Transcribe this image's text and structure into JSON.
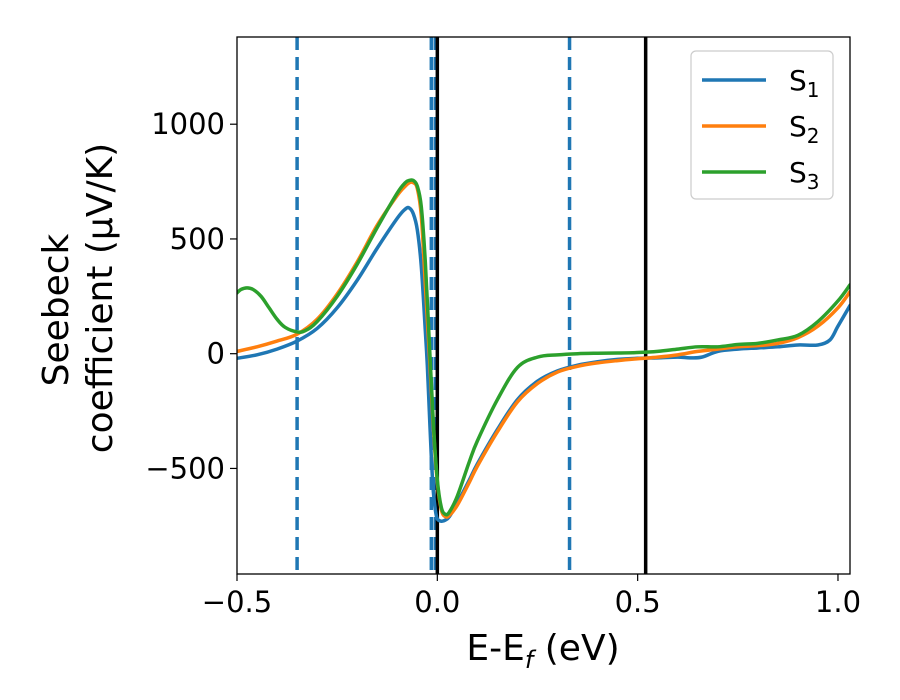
{
  "chart_data": {
    "type": "line",
    "xlabel": "E-E",
    "xlabel_sub": "f",
    "xlabel_unit": " (eV)",
    "ylabel_line1": "Seebeck",
    "ylabel_line2": "coefficient  (μV/K)",
    "xlim": [
      -0.5,
      1.03
    ],
    "ylim": [
      -960,
      1380
    ],
    "xticks": [
      -0.5,
      0.0,
      0.5,
      1.0
    ],
    "xtick_labels": [
      "−0.5",
      "0.0",
      "0.5",
      "1.0"
    ],
    "yticks": [
      -500,
      0,
      500,
      1000
    ],
    "ytick_labels": [
      "−500",
      "0",
      "500",
      "1000"
    ],
    "grid": false,
    "legend_position": "top-right",
    "vlines_dashed": {
      "color": "#1f77b4",
      "x": [
        -0.35,
        -0.015,
        -0.005,
        0.33
      ]
    },
    "vlines_solid": {
      "color": "#000000",
      "x": [
        0.0,
        0.52
      ]
    },
    "series": [
      {
        "name": "S",
        "subscript": "1",
        "color": "#1f77b4",
        "x": [
          -0.5,
          -0.45,
          -0.4,
          -0.35,
          -0.3,
          -0.25,
          -0.2,
          -0.15,
          -0.1,
          -0.08,
          -0.07,
          -0.06,
          -0.05,
          -0.04,
          -0.03,
          -0.025,
          -0.02,
          -0.015,
          -0.01,
          -0.005,
          0.0,
          0.01,
          0.02,
          0.03,
          0.05,
          0.08,
          0.1,
          0.15,
          0.2,
          0.25,
          0.3,
          0.35,
          0.4,
          0.45,
          0.5,
          0.55,
          0.6,
          0.63,
          0.66,
          0.7,
          0.75,
          0.8,
          0.85,
          0.9,
          0.95,
          0.98,
          1.0,
          1.03
        ],
        "y": [
          -20,
          -5,
          20,
          55,
          110,
          200,
          320,
          460,
          590,
          630,
          635,
          610,
          540,
          380,
          100,
          -50,
          -250,
          -450,
          -600,
          -680,
          -720,
          -730,
          -725,
          -710,
          -650,
          -550,
          -480,
          -330,
          -200,
          -120,
          -75,
          -50,
          -35,
          -25,
          -20,
          -18,
          -15,
          -18,
          -15,
          10,
          20,
          25,
          30,
          38,
          38,
          60,
          120,
          210
        ]
      },
      {
        "name": "S",
        "subscript": "2",
        "color": "#ff7f0e",
        "x": [
          -0.5,
          -0.45,
          -0.4,
          -0.35,
          -0.3,
          -0.25,
          -0.2,
          -0.15,
          -0.1,
          -0.08,
          -0.07,
          -0.06,
          -0.05,
          -0.04,
          -0.03,
          -0.02,
          -0.01,
          0.0,
          0.01,
          0.02,
          0.03,
          0.05,
          0.08,
          0.1,
          0.15,
          0.2,
          0.25,
          0.3,
          0.35,
          0.4,
          0.45,
          0.5,
          0.55,
          0.6,
          0.65,
          0.7,
          0.75,
          0.8,
          0.85,
          0.9,
          0.95,
          1.0,
          1.03
        ],
        "y": [
          10,
          30,
          55,
          85,
          150,
          260,
          400,
          560,
          690,
          730,
          745,
          745,
          720,
          600,
          300,
          0,
          -320,
          -560,
          -680,
          -710,
          -705,
          -660,
          -560,
          -490,
          -340,
          -210,
          -130,
          -80,
          -55,
          -40,
          -30,
          -22,
          -15,
          -5,
          10,
          20,
          30,
          35,
          45,
          70,
          120,
          200,
          270
        ]
      },
      {
        "name": "S",
        "subscript": "3",
        "color": "#2ca02c",
        "x": [
          -0.5,
          -0.49,
          -0.475,
          -0.46,
          -0.44,
          -0.42,
          -0.4,
          -0.38,
          -0.35,
          -0.33,
          -0.3,
          -0.25,
          -0.2,
          -0.15,
          -0.1,
          -0.08,
          -0.07,
          -0.06,
          -0.05,
          -0.04,
          -0.03,
          -0.02,
          -0.01,
          0.0,
          0.01,
          0.02,
          0.03,
          0.05,
          0.08,
          0.1,
          0.15,
          0.2,
          0.25,
          0.3,
          0.35,
          0.4,
          0.45,
          0.5,
          0.55,
          0.6,
          0.65,
          0.7,
          0.75,
          0.8,
          0.85,
          0.9,
          0.95,
          1.0,
          1.03
        ],
        "y": [
          265,
          280,
          287,
          280,
          250,
          200,
          150,
          115,
          95,
          100,
          140,
          250,
          390,
          550,
          700,
          745,
          755,
          755,
          730,
          640,
          400,
          50,
          -300,
          -550,
          -670,
          -700,
          -690,
          -620,
          -470,
          -380,
          -200,
          -60,
          -15,
          -5,
          0,
          2,
          3,
          5,
          10,
          20,
          30,
          30,
          40,
          45,
          60,
          80,
          140,
          230,
          300
        ]
      }
    ]
  }
}
